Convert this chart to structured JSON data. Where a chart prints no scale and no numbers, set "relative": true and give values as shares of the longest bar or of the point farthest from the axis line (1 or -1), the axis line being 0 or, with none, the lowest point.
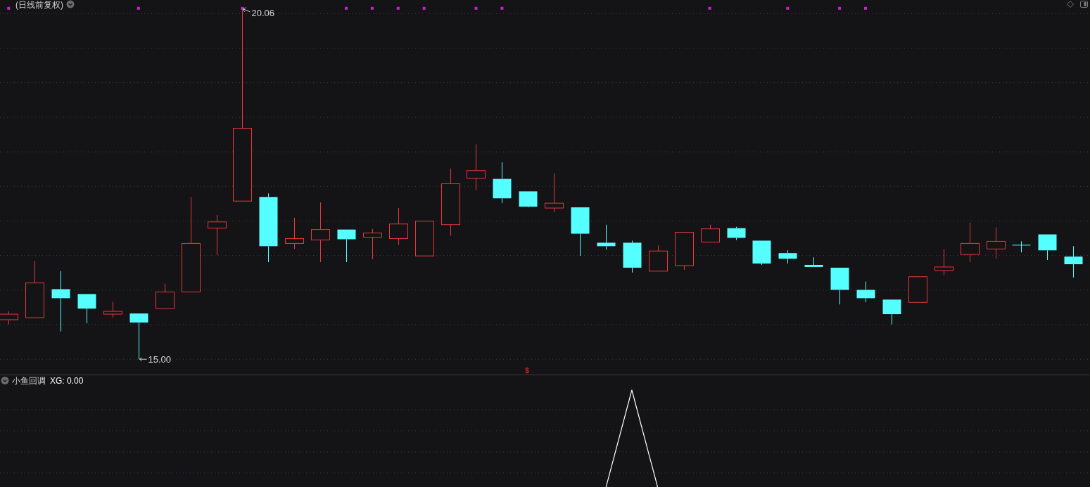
{
  "chart_data": [
    {
      "type": "candlestick",
      "title": "(日线前复权)",
      "grid": "y",
      "categories": [
        null,
        null,
        null,
        null,
        null,
        null,
        null,
        null,
        null,
        null,
        null,
        null,
        null,
        null,
        null,
        null,
        null,
        null,
        null,
        null,
        null,
        null,
        null,
        null,
        null,
        null,
        null,
        null,
        null,
        null,
        null,
        null,
        null,
        null,
        null,
        null,
        null,
        null,
        null,
        null,
        null,
        null
      ],
      "ohlc": [
        [
          15.57,
          15.69,
          15.5,
          15.65
        ],
        [
          15.6,
          16.42,
          15.6,
          16.1
        ],
        [
          16.01,
          16.27,
          15.4,
          15.88
        ],
        [
          15.94,
          15.94,
          15.52,
          15.73
        ],
        [
          15.65,
          15.83,
          15.6,
          15.69
        ],
        [
          15.66,
          15.66,
          15.0,
          15.53
        ],
        [
          15.73,
          16.09,
          15.73,
          15.97
        ],
        [
          15.97,
          17.34,
          15.97,
          16.67
        ],
        [
          16.89,
          17.08,
          16.5,
          16.98
        ],
        [
          17.28,
          20.06,
          17.28,
          18.33
        ],
        [
          17.34,
          17.39,
          16.4,
          16.63
        ],
        [
          16.67,
          17.04,
          16.59,
          16.74
        ],
        [
          16.72,
          17.26,
          16.4,
          16.87
        ],
        [
          16.87,
          16.87,
          16.4,
          16.73
        ],
        [
          16.76,
          16.88,
          16.44,
          16.82
        ],
        [
          16.74,
          17.18,
          16.65,
          16.95
        ],
        [
          16.49,
          16.99,
          16.49,
          16.99
        ],
        [
          16.94,
          17.75,
          16.78,
          17.53
        ],
        [
          17.61,
          18.1,
          17.44,
          17.72
        ],
        [
          17.6,
          17.84,
          17.25,
          17.32
        ],
        [
          17.42,
          17.42,
          17.19,
          17.2
        ],
        [
          17.18,
          17.68,
          17.12,
          17.25
        ],
        [
          17.19,
          17.19,
          16.49,
          16.81
        ],
        [
          16.68,
          16.94,
          16.58,
          16.63
        ],
        [
          16.68,
          16.71,
          16.25,
          16.32
        ],
        [
          16.27,
          16.64,
          16.27,
          16.56
        ],
        [
          16.35,
          16.83,
          16.29,
          16.83
        ],
        [
          16.69,
          16.94,
          16.69,
          16.88
        ],
        [
          16.89,
          16.91,
          16.72,
          16.75
        ],
        [
          16.71,
          16.71,
          16.36,
          16.38
        ],
        [
          16.53,
          16.57,
          16.38,
          16.45
        ],
        [
          16.36,
          16.47,
          16.33,
          16.33
        ],
        [
          16.32,
          16.32,
          15.79,
          16.0
        ],
        [
          16.0,
          16.12,
          15.82,
          15.88
        ],
        [
          15.86,
          15.86,
          15.5,
          15.65
        ],
        [
          15.82,
          16.19,
          15.82,
          16.19
        ],
        [
          16.28,
          16.59,
          16.21,
          16.33
        ],
        [
          16.51,
          16.97,
          16.4,
          16.67
        ],
        [
          16.59,
          16.9,
          16.45,
          16.7
        ],
        [
          16.65,
          16.7,
          16.54,
          16.65
        ],
        [
          16.8,
          16.8,
          16.43,
          16.57
        ],
        [
          16.48,
          16.63,
          16.18,
          16.37
        ]
      ],
      "colors": [
        "#e8383d",
        "#e8383d",
        "#55ffff",
        "#55ffff",
        "#e8383d",
        "#55ffff",
        "#e8383d",
        "#e8383d",
        "#e8383d",
        "#e8383d",
        "#55ffff",
        "#e8383d",
        "#e8383d",
        "#55ffff",
        "#e8383d",
        "#e8383d",
        "#e8383d",
        "#e8383d",
        "#e8383d",
        "#55ffff",
        "#55ffff",
        "#e8383d",
        "#55ffff",
        "#55ffff",
        "#55ffff",
        "#e8383d",
        "#e8383d",
        "#e8383d",
        "#55ffff",
        "#55ffff",
        "#55ffff",
        "#55ffff",
        "#55ffff",
        "#55ffff",
        "#55ffff",
        "#e8383d",
        "#e8383d",
        "#e8383d",
        "#e8383d",
        "#55ffff",
        "#55ffff",
        "#55ffff"
      ],
      "series": [
        {
          "type": "scatter",
          "color": "#cc22cc",
          "marker": "square",
          "values": [
            20.06,
            null,
            null,
            null,
            null,
            20.06,
            null,
            null,
            null,
            20.06,
            null,
            null,
            null,
            20.06,
            20.06,
            20.06,
            20.06,
            null,
            20.06,
            20.06,
            null,
            null,
            null,
            null,
            null,
            null,
            null,
            20.06,
            null,
            null,
            20.06,
            null,
            20.06,
            20.06,
            null,
            null,
            null,
            null,
            null,
            null,
            null,
            null
          ]
        }
      ],
      "annotations": [
        "20.06",
        "15.00",
        "$"
      ]
    },
    {
      "type": "line",
      "title": "小鱼回调",
      "grid": "y",
      "relative": true,
      "legend": "top left",
      "categories": [
        null,
        null,
        null,
        null,
        null,
        null,
        null,
        null,
        null,
        null,
        null,
        null,
        null,
        null,
        null,
        null,
        null,
        null,
        null,
        null,
        null,
        null,
        null,
        null,
        null,
        null,
        null,
        null,
        null,
        null,
        null,
        null,
        null,
        null,
        null,
        null,
        null,
        null,
        null,
        null,
        null,
        null
      ],
      "series": [
        {
          "name": "XG: 0.00",
          "color": "#ffffff",
          "values": [
            null,
            null,
            null,
            null,
            null,
            null,
            null,
            null,
            null,
            null,
            null,
            null,
            null,
            null,
            null,
            null,
            null,
            null,
            null,
            null,
            null,
            null,
            null,
            0,
            1,
            0,
            null,
            null,
            null,
            null,
            null,
            null,
            null,
            null,
            null,
            null,
            null,
            null,
            null,
            null,
            null,
            null
          ]
        }
      ]
    }
  ]
}
